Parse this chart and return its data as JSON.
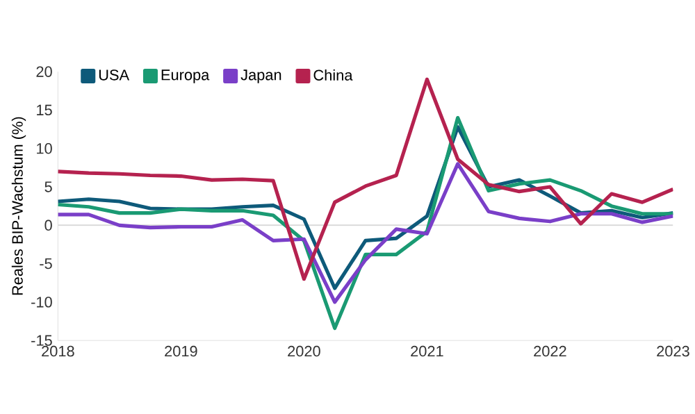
{
  "chart_data": {
    "type": "line",
    "ylabel": "Reales BIP-Wachstum (%)",
    "x": [
      2018,
      2018.25,
      2018.5,
      2018.75,
      2019,
      2019.25,
      2019.5,
      2019.75,
      2020,
      2020.25,
      2020.5,
      2020.75,
      2021,
      2021.25,
      2021.5,
      2021.75,
      2022,
      2022.25,
      2022.5,
      2022.75,
      2023
    ],
    "series": [
      {
        "name": "USA",
        "color": "#0e5a7a",
        "values": [
          3.1,
          3.4,
          3.1,
          2.2,
          2.1,
          2.1,
          2.4,
          2.6,
          0.8,
          -8.2,
          -2.0,
          -1.7,
          1.2,
          12.8,
          5.0,
          5.9,
          3.8,
          1.6,
          1.9,
          1.0,
          1.6
        ]
      },
      {
        "name": "Europa",
        "color": "#1a9a73",
        "values": [
          2.7,
          2.4,
          1.6,
          1.6,
          2.1,
          1.9,
          1.9,
          1.3,
          -2.0,
          -13.4,
          -3.8,
          -3.8,
          -0.8,
          14.0,
          4.5,
          5.4,
          5.9,
          4.5,
          2.5,
          1.5,
          1.5
        ]
      },
      {
        "name": "Japan",
        "color": "#7a3fc8",
        "values": [
          1.4,
          1.4,
          0.0,
          -0.3,
          -0.2,
          -0.2,
          0.7,
          -2.0,
          -1.8,
          -10.0,
          -4.5,
          -0.5,
          -1.1,
          8.0,
          1.8,
          0.9,
          0.5,
          1.5,
          1.5,
          0.4,
          1.2
        ]
      },
      {
        "name": "China",
        "color": "#b5224f",
        "values": [
          7.0,
          6.8,
          6.7,
          6.5,
          6.4,
          5.9,
          6.0,
          5.8,
          -7.0,
          3.0,
          5.1,
          6.5,
          19.0,
          8.6,
          5.3,
          4.4,
          5.0,
          0.2,
          4.1,
          3.0,
          4.7
        ]
      }
    ],
    "xlim": [
      2018,
      2023
    ],
    "xticks": [
      2018,
      2019,
      2020,
      2021,
      2022,
      2023
    ],
    "ylim": [
      -15,
      20
    ],
    "yticks": [
      -15,
      -10,
      -5,
      0,
      5,
      10,
      15,
      20
    ],
    "ref_lines": [
      {
        "axis": "y",
        "value": 0,
        "color": "#d9d9d9"
      }
    ],
    "grid": false,
    "legend": "top left",
    "line_style": "solid"
  }
}
